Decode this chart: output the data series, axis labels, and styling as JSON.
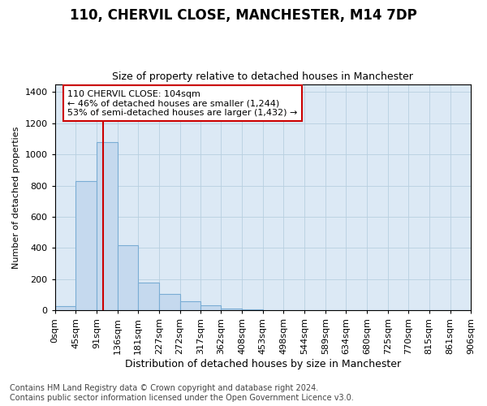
{
  "title_line1": "110, CHERVIL CLOSE, MANCHESTER, M14 7DP",
  "title_line2": "Size of property relative to detached houses in Manchester",
  "xlabel": "Distribution of detached houses by size in Manchester",
  "ylabel": "Number of detached properties",
  "bar_values": [
    25,
    830,
    1080,
    420,
    180,
    105,
    60,
    35,
    10,
    5,
    2,
    0,
    0,
    0,
    0,
    0,
    0,
    0,
    0,
    0
  ],
  "bar_edges": [
    0,
    45,
    91,
    136,
    181,
    227,
    272,
    317,
    362,
    408,
    453,
    498,
    544,
    589,
    634,
    680,
    725,
    770,
    815,
    861,
    906
  ],
  "bar_color": "#c5d9ee",
  "bar_edgecolor": "#7aadd4",
  "bar_linewidth": 0.8,
  "vline_x": 104,
  "vline_color": "#cc0000",
  "vline_linewidth": 1.5,
  "ylim": [
    0,
    1450
  ],
  "yticks": [
    0,
    200,
    400,
    600,
    800,
    1000,
    1200,
    1400
  ],
  "annotation_text": "110 CHERVIL CLOSE: 104sqm\n← 46% of detached houses are smaller (1,244)\n53% of semi-detached houses are larger (1,432) →",
  "annotation_box_color": "#ffffff",
  "annotation_box_edgecolor": "#cc0000",
  "annotation_fontsize": 8,
  "footnote": "Contains HM Land Registry data © Crown copyright and database right 2024.\nContains public sector information licensed under the Open Government Licence v3.0.",
  "footnote_fontsize": 7,
  "background_color": "#ffffff",
  "plot_bg_color": "#dce9f5",
  "grid_color": "#b8cfe0",
  "tick_label_fontsize": 8,
  "ylabel_fontsize": 8,
  "xlabel_fontsize": 9,
  "title1_fontsize": 12,
  "title2_fontsize": 9
}
